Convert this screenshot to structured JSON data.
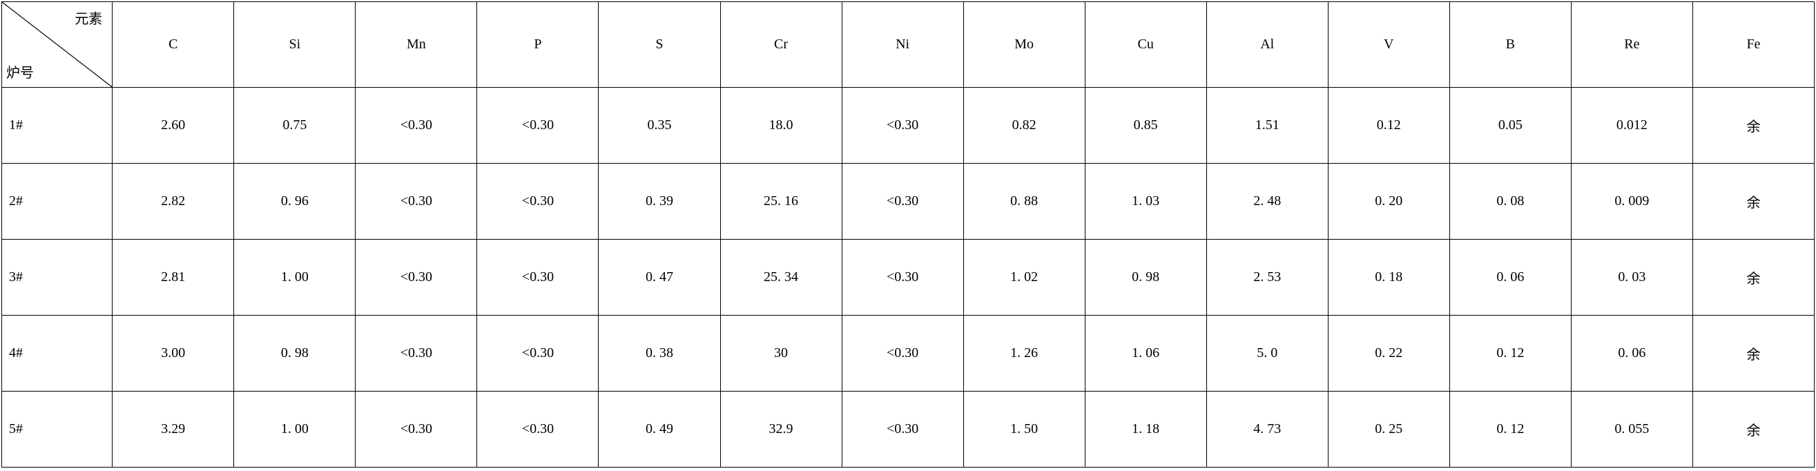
{
  "header": {
    "cornerTop": "元素",
    "cornerBottom": "炉号",
    "columns": [
      "C",
      "Si",
      "Mn",
      "P",
      "S",
      "Cr",
      "Ni",
      "Mo",
      "Cu",
      "Al",
      "V",
      "B",
      "Re",
      "Fe"
    ]
  },
  "rows": [
    {
      "label": "1#",
      "cells": [
        "2.60",
        "0.75",
        "<0.30",
        "<0.30",
        "0.35",
        "18.0",
        "<0.30",
        "0.82",
        "0.85",
        "1.51",
        "0.12",
        "0.05",
        "0.012",
        "余"
      ]
    },
    {
      "label": "2#",
      "cells": [
        "2.82",
        "0. 96",
        "<0.30",
        "<0.30",
        "0. 39",
        "25. 16",
        "<0.30",
        "0. 88",
        "1. 03",
        "2. 48",
        "0. 20",
        "0. 08",
        "0. 009",
        "余"
      ]
    },
    {
      "label": "3#",
      "cells": [
        "2.81",
        "1. 00",
        "<0.30",
        "<0.30",
        "0. 47",
        "25. 34",
        "<0.30",
        "1. 02",
        "0. 98",
        "2. 53",
        "0. 18",
        "0. 06",
        "0. 03",
        "余"
      ]
    },
    {
      "label": "4#",
      "cells": [
        "3.00",
        "0. 98",
        "<0.30",
        "<0.30",
        "0. 38",
        "30",
        "<0.30",
        "1. 26",
        "1. 06",
        "5. 0",
        "0. 22",
        "0. 12",
        "0. 06",
        "余"
      ]
    },
    {
      "label": "5#",
      "cells": [
        "3.29",
        "1. 00",
        "<0.30",
        "<0.30",
        "0. 49",
        "32.9",
        "<0.30",
        "1. 50",
        "1. 18",
        "4. 73",
        "0. 25",
        "0. 12",
        "0. 055",
        "余"
      ]
    }
  ],
  "style": {
    "border_color": "#000000",
    "background": "#ffffff",
    "font_family": "SimSun",
    "header_fontsize": 20,
    "cell_fontsize": 20,
    "col_widths_pct": [
      6.1,
      6.7,
      6.7,
      6.7,
      6.7,
      6.7,
      6.7,
      6.7,
      6.7,
      6.7,
      6.7,
      6.7,
      6.7,
      6.7,
      6.7
    ]
  }
}
